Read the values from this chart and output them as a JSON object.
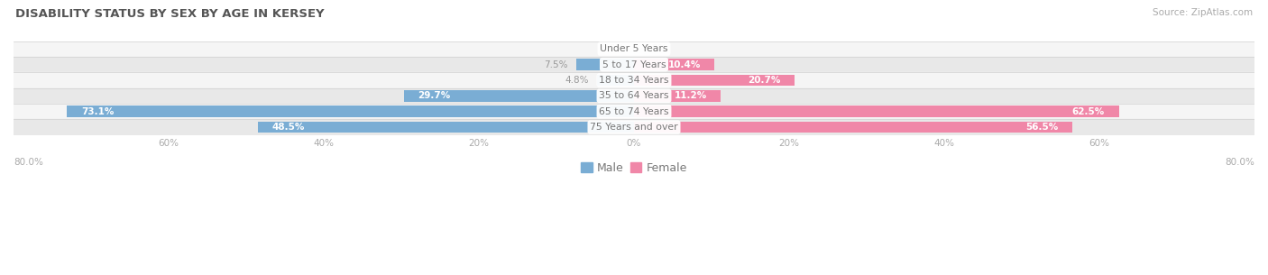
{
  "title": "DISABILITY STATUS BY SEX BY AGE IN KERSEY",
  "source": "Source: ZipAtlas.com",
  "categories": [
    "Under 5 Years",
    "5 to 17 Years",
    "18 to 34 Years",
    "35 to 64 Years",
    "65 to 74 Years",
    "75 Years and over"
  ],
  "male_values": [
    0.0,
    7.5,
    4.8,
    29.7,
    73.1,
    48.5
  ],
  "female_values": [
    0.0,
    10.4,
    20.7,
    11.2,
    62.5,
    56.5
  ],
  "male_color": "#7aadd4",
  "female_color": "#f087a8",
  "row_bg_light": "#f5f5f5",
  "row_bg_dark": "#e8e8e8",
  "row_sep_color": "#d0d0d0",
  "x_min": -80.0,
  "x_max": 80.0,
  "bar_height": 0.72,
  "label_color_inside": "#ffffff",
  "label_color_outside": "#999999",
  "category_label_color": "#777777",
  "title_color": "#555555",
  "axis_label_color": "#aaaaaa",
  "legend_labels": [
    "Male",
    "Female"
  ],
  "threshold_inside": 8.0
}
